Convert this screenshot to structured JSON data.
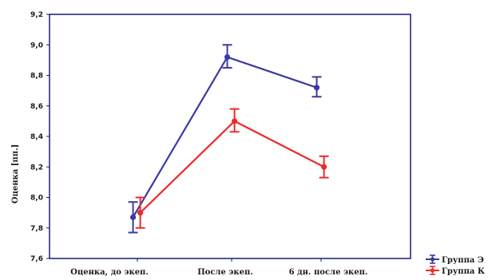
{
  "chart_data": {
    "type": "line",
    "categories": [
      "Оценка, до экеп.",
      "После экеп.",
      "6 дн. после экеп."
    ],
    "ylabel": "Оценка [пп.]",
    "xlabel": "",
    "ylim": [
      7.6,
      9.2
    ],
    "yticks": [
      "7,6",
      "7,8",
      "8,0",
      "8,2",
      "8,4",
      "8,6",
      "8,8",
      "9,0",
      "9,2"
    ],
    "grid": false,
    "legend_position": "bottom-right",
    "series": [
      {
        "name": "Группа Э",
        "color": "#3a3aa0",
        "values": [
          7.87,
          8.92,
          8.72
        ],
        "error_low": [
          7.77,
          8.85,
          8.66
        ],
        "error_high": [
          7.97,
          9.0,
          8.79
        ],
        "x_offset": -0.12
      },
      {
        "name": "Группа К",
        "color": "#ee2a2a",
        "values": [
          7.9,
          8.5,
          8.2
        ],
        "error_low": [
          7.8,
          8.43,
          8.13
        ],
        "error_high": [
          8.0,
          8.58,
          8.27
        ],
        "x_offset": 0.08
      }
    ]
  }
}
